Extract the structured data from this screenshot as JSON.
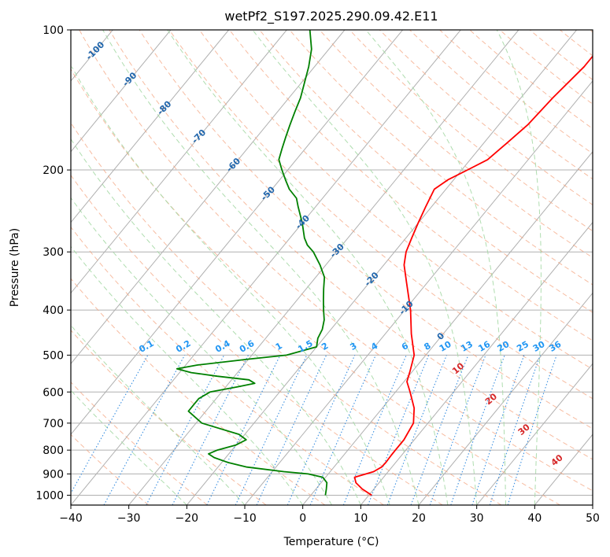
{
  "chart_data": {
    "type": "line",
    "subtype": "skew-t log-p",
    "title": "wetPf2_S197.2025.290.09.42.E11",
    "xlabel": "Temperature (°C)",
    "ylabel": "Pressure (hPa)",
    "xlim": [
      -40,
      50
    ],
    "ylim": [
      1050,
      100
    ],
    "y_scale": "log",
    "grid": true,
    "x_ticks": [
      -40,
      -30,
      -20,
      -10,
      0,
      10,
      20,
      30,
      40,
      50
    ],
    "x_tick_labels": [
      "−40",
      "−30",
      "−20",
      "−10",
      "0",
      "10",
      "20",
      "30",
      "40",
      "50"
    ],
    "y_ticks": [
      1000,
      900,
      800,
      700,
      600,
      500,
      400,
      300,
      200,
      100
    ],
    "y_tick_labels": [
      "1000",
      "900",
      "800",
      "700",
      "600",
      "500",
      "400",
      "300",
      "200",
      "100"
    ],
    "colors": {
      "temperature": "#ff0000",
      "dewpoint": "#008000",
      "isotherm": "#b0b0b0",
      "dry_adiabat": "#f4a582",
      "moist_adiabat": "#a6d9a6",
      "mixing_ratio": "#3a8fe0",
      "mixing_label": "#2196f3",
      "moist_label": "#2166ac",
      "lcl_label": "#d62728"
    },
    "series": [
      {
        "role": "temperature",
        "pressure": [
          1000,
          970,
          940,
          915,
          900,
          890,
          870,
          850,
          820,
          800,
          760,
          700,
          650,
          600,
          570,
          540,
          500,
          450,
          400,
          350,
          320,
          300,
          280,
          260,
          240,
          220,
          210,
          200,
          190,
          175,
          160,
          140,
          120,
          110,
          100
        ],
        "values": [
          10.5,
          8,
          6,
          5,
          6.5,
          7.5,
          8.2,
          8.3,
          8.2,
          8.2,
          8.2,
          7.5,
          5.5,
          2.5,
          0.5,
          -0.5,
          -2,
          -5.5,
          -9,
          -13.5,
          -16.5,
          -18,
          -19,
          -20,
          -21,
          -22,
          -21,
          -19,
          -17,
          -16,
          -15,
          -14.5,
          -13.5,
          -13.5,
          -13
        ]
      },
      {
        "role": "dewpoint",
        "pressure": [
          1000,
          970,
          940,
          915,
          900,
          890,
          870,
          850,
          830,
          815,
          800,
          780,
          760,
          740,
          700,
          660,
          640,
          620,
          600,
          585,
          575,
          565,
          555,
          545,
          535,
          525,
          510,
          500,
          480,
          460,
          440,
          420,
          400,
          380,
          360,
          340,
          320,
          300,
          290,
          280,
          260,
          240,
          230,
          220,
          210,
          200,
          190,
          180,
          170,
          160,
          150,
          140,
          120,
          110,
          100
        ],
        "values": [
          2.5,
          1.8,
          1.0,
          -0.5,
          -3.5,
          -8,
          -15,
          -19,
          -22,
          -23.5,
          -22.5,
          -20,
          -19,
          -21,
          -29,
          -33,
          -33,
          -33,
          -32,
          -28,
          -25.5,
          -27,
          -33,
          -38,
          -41,
          -38,
          -30,
          -24,
          -20,
          -21,
          -21.5,
          -22.5,
          -24,
          -25.5,
          -27,
          -28.5,
          -31,
          -34,
          -36,
          -37.5,
          -40,
          -43,
          -44.5,
          -47,
          -49,
          -51,
          -53,
          -54,
          -55,
          -56,
          -57,
          -58,
          -61,
          -63,
          -66
        ]
      }
    ],
    "mixing_ratio_labels": [
      "0.1",
      "0.2",
      "0.4",
      "0.6",
      "1",
      "1.5",
      "2",
      "3",
      "4",
      "6",
      "8",
      "10",
      "13",
      "16",
      "20",
      "25",
      "30",
      "36"
    ],
    "moist_adiabat_labels": [
      "-100",
      "-90",
      "-80",
      "-70",
      "-60",
      "-50",
      "-40",
      "-30",
      "-20",
      "-10",
      "0"
    ],
    "lcl_labels": [
      "10",
      "20",
      "30",
      "40"
    ]
  }
}
